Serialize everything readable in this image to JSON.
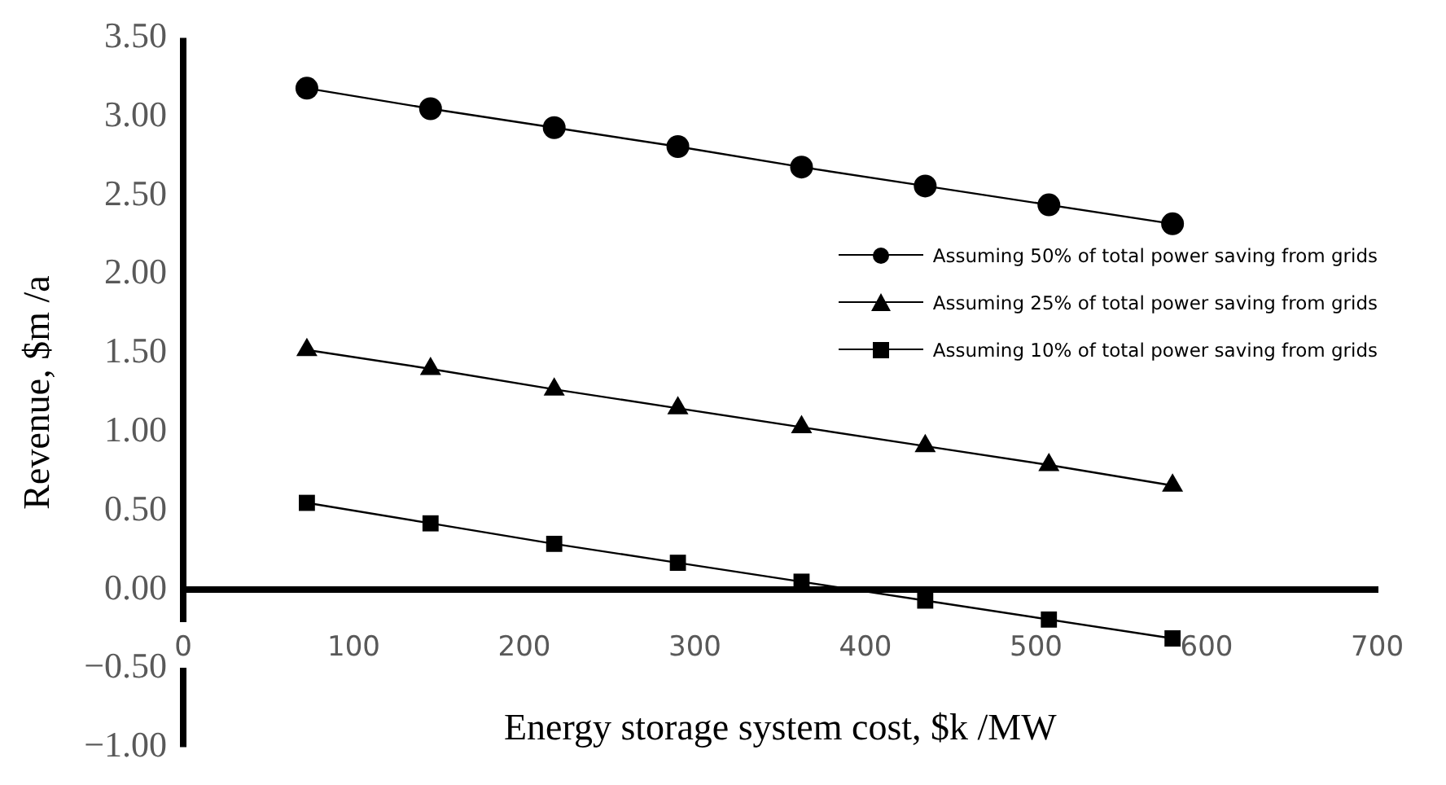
{
  "chart_data": {
    "type": "line",
    "xlabel": "Energy storage system cost, $k /MW",
    "ylabel": "Revenue, $m /a",
    "x": [
      72.5,
      145,
      217.5,
      290,
      362.5,
      435,
      507.5,
      580
    ],
    "series": [
      {
        "name": "Assuming 50% of total power saving from grids",
        "color": "#000000",
        "marker": "circle",
        "values": [
          3.18,
          3.05,
          2.93,
          2.81,
          2.68,
          2.56,
          2.44,
          2.32
        ]
      },
      {
        "name": "Assuming 25% of total power saving from grids",
        "color": "#000000",
        "marker": "triangle",
        "values": [
          1.52,
          1.4,
          1.27,
          1.15,
          1.03,
          0.91,
          0.79,
          0.66
        ]
      },
      {
        "name": "Assuming 10% of total power saving from grids",
        "color": "#000000",
        "marker": "square",
        "values": [
          0.55,
          0.42,
          0.29,
          0.17,
          0.05,
          -0.07,
          -0.19,
          -0.31
        ]
      }
    ],
    "xlim": [
      0,
      700
    ],
    "xticks": [
      0,
      100,
      200,
      300,
      400,
      500,
      600,
      700
    ],
    "ylim": [
      -1,
      3.5
    ],
    "yticks": [
      {
        "value": -1,
        "label": "−1.00"
      },
      {
        "value": -0.5,
        "label": "−0.50"
      },
      {
        "value": 0,
        "label": "0.00"
      },
      {
        "value": 0.5,
        "label": "0.50"
      },
      {
        "value": 1,
        "label": "1.00"
      },
      {
        "value": 1.5,
        "label": "1.50"
      },
      {
        "value": 2,
        "label": "2.00"
      },
      {
        "value": 2.5,
        "label": "2.50"
      },
      {
        "value": 3,
        "label": "3.00"
      },
      {
        "value": 3.5,
        "label": "3.50"
      }
    ],
    "grid": false,
    "legend": "right",
    "line_style": "solid"
  }
}
